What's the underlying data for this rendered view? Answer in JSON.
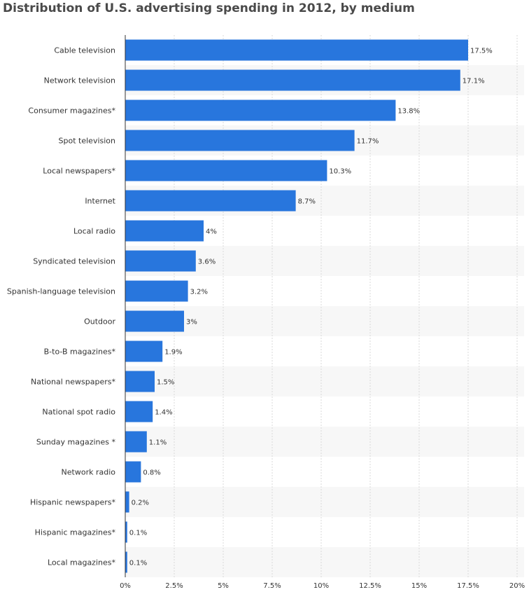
{
  "chart_data": {
    "type": "bar",
    "orientation": "horizontal",
    "title": "Distribution of U.S. advertising spending in 2012, by medium",
    "categories": [
      "Cable television",
      "Network television",
      "Consumer magazines*",
      "Spot television",
      "Local newspapers*",
      "Internet",
      "Local radio",
      "Syndicated television",
      "Spanish-language television",
      "Outdoor",
      "B-to-B magazines*",
      "National newspapers*",
      "National spot radio",
      "Sunday magazines *",
      "Network radio",
      "Hispanic newspapers*",
      "Hispanic magazines*",
      "Local magazines*"
    ],
    "values": [
      17.5,
      17.1,
      13.8,
      11.7,
      10.3,
      8.7,
      4,
      3.6,
      3.2,
      3,
      1.9,
      1.5,
      1.4,
      1.1,
      0.8,
      0.2,
      0.1,
      0.1
    ],
    "value_labels": [
      "17.5%",
      "17.1%",
      "13.8%",
      "11.7%",
      "10.3%",
      "8.7%",
      "4%",
      "3.6%",
      "3.2%",
      "3%",
      "1.9%",
      "1.5%",
      "1.4%",
      "1.1%",
      "0.8%",
      "0.2%",
      "0.1%",
      "0.1%"
    ],
    "xlim": [
      0,
      20
    ],
    "xticks": [
      0,
      2.5,
      5,
      7.5,
      10,
      12.5,
      15,
      17.5,
      20
    ],
    "xtick_labels": [
      "0%",
      "2.5%",
      "5%",
      "7.5%",
      "10%",
      "12.5%",
      "15%",
      "17.5%",
      "20%"
    ],
    "xlabel": "",
    "ylabel": "",
    "grid": true,
    "legend": "none",
    "colors": {
      "bar": "#2876dd",
      "alt_band": "#f7f7f7"
    }
  }
}
